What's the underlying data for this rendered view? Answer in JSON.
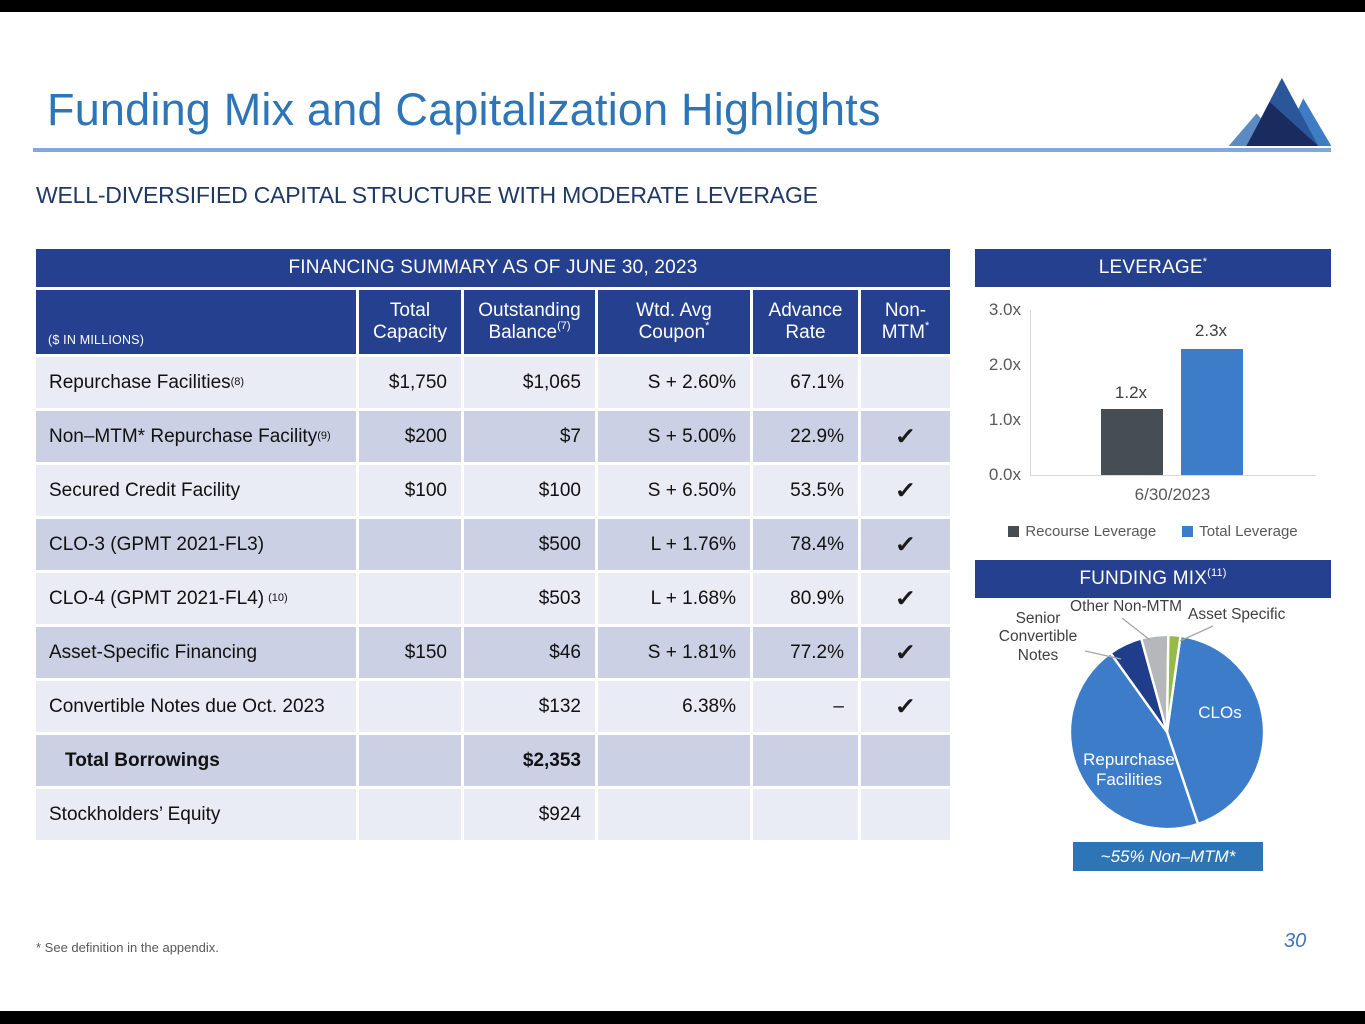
{
  "page": {
    "title": "Funding Mix and Capitalization Highlights",
    "subtitle": "WELL-DIVERSIFIED CAPITAL STRUCTURE WITH MODERATE LEVERAGE",
    "footnote": "* See definition in the appendix.",
    "page_number": "30"
  },
  "table": {
    "title": "FINANCING SUMMARY AS OF JUNE 30, 2023",
    "unit_note": "($ IN MILLIONS)",
    "columns": [
      {
        "label": "Total Capacity",
        "sup": ""
      },
      {
        "label": "Outstanding Balance",
        "sup": "(7)"
      },
      {
        "label": "Wtd. Avg Coupon",
        "sup": "*"
      },
      {
        "label": "Advance Rate",
        "sup": ""
      },
      {
        "label": "Non-MTM",
        "sup": "*"
      }
    ],
    "rows": [
      {
        "label": "Repurchase Facilities",
        "sup": "(8)",
        "capacity": "$1,750",
        "balance": "$1,065",
        "coupon": "S + 2.60%",
        "advance": "67.1%",
        "nonmtm": false,
        "shade": "light"
      },
      {
        "label": "Non–MTM* Repurchase Facility",
        "sup": "(9)",
        "capacity": "$200",
        "balance": "$7",
        "coupon": "S + 5.00%",
        "advance": "22.9%",
        "nonmtm": true,
        "shade": "dark"
      },
      {
        "label": "Secured Credit Facility",
        "sup": "",
        "capacity": "$100",
        "balance": "$100",
        "coupon": "S + 6.50%",
        "advance": "53.5%",
        "nonmtm": true,
        "shade": "light"
      },
      {
        "label": "CLO-3 (GPMT 2021-FL3)",
        "sup": "",
        "capacity": "",
        "balance": "$500",
        "coupon": "L + 1.76%",
        "advance": "78.4%",
        "nonmtm": true,
        "shade": "dark"
      },
      {
        "label": "CLO-4 (GPMT 2021-FL4)",
        "sup": "(10)",
        "sup_gap": true,
        "capacity": "",
        "balance": "$503",
        "coupon": "L + 1.68%",
        "advance": "80.9%",
        "nonmtm": true,
        "shade": "light"
      },
      {
        "label": "Asset-Specific Financing",
        "sup": "",
        "capacity": "$150",
        "balance": "$46",
        "coupon": "S + 1.81%",
        "advance": "77.2%",
        "nonmtm": true,
        "shade": "dark"
      },
      {
        "label": "Convertible Notes due Oct. 2023",
        "sup": "",
        "capacity": "",
        "balance": "$132",
        "coupon": "6.38%",
        "advance": "–",
        "nonmtm": true,
        "shade": "light"
      },
      {
        "label": "Total Borrowings",
        "sup": "",
        "capacity": "",
        "balance": "$2,353",
        "coupon": "",
        "advance": "",
        "nonmtm": false,
        "shade": "dark",
        "bold": true,
        "indent": true
      },
      {
        "label": "Stockholders’ Equity",
        "sup": "",
        "capacity": "",
        "balance": "$924",
        "coupon": "",
        "advance": "",
        "nonmtm": false,
        "shade": "light"
      }
    ]
  },
  "leverage_panel": {
    "title": "LEVERAGE",
    "sup": "*"
  },
  "funding_panel": {
    "title": "FUNDING MIX",
    "sup": "(11)",
    "callout": "~55% Non–MTM*"
  },
  "chart_data": [
    {
      "type": "bar",
      "title": "LEVERAGE*",
      "categories": [
        "6/30/2023"
      ],
      "series": [
        {
          "name": "Recourse Leverage",
          "values": [
            1.2
          ],
          "color": "#474E53"
        },
        {
          "name": "Total Leverage",
          "values": [
            2.3
          ],
          "color": "#3D7CC9"
        }
      ],
      "bar_labels": [
        "1.2x",
        "2.3x"
      ],
      "ylim": [
        0,
        3.0
      ],
      "yticks": [
        "3.0x",
        "2.0x",
        "1.0x",
        "0.0x"
      ],
      "legend_position": "bottom",
      "grid": false
    },
    {
      "type": "pie",
      "title": "FUNDING MIX(11)",
      "start_angle_deg": 8,
      "slices": [
        {
          "label": "CLOs",
          "pct": 42.6,
          "color": "#3D7CC9"
        },
        {
          "label": "Repurchase Facilities",
          "pct": 45.3,
          "color": "#3D7CC9"
        },
        {
          "label": "Senior Convertible Notes",
          "pct": 5.6,
          "color": "#1F3D8A"
        },
        {
          "label": "Other Non-MTM",
          "pct": 4.5,
          "color": "#B5B7BA"
        },
        {
          "label": "Asset Specific",
          "pct": 2.0,
          "color": "#95BA47"
        }
      ],
      "callout": "~55% Non–MTM*"
    }
  ],
  "colors": {
    "header_navy": "#24408E",
    "title_blue": "#2E75B6",
    "subtitle_navy": "#1F3864",
    "rule_blue": "#7FA8DC",
    "row_light": "#E9EBF5",
    "row_dark": "#CBD0E4",
    "banner_blue": "#2E75B6",
    "bar_gray": "#474E53",
    "bar_blue": "#3D7CC9"
  }
}
